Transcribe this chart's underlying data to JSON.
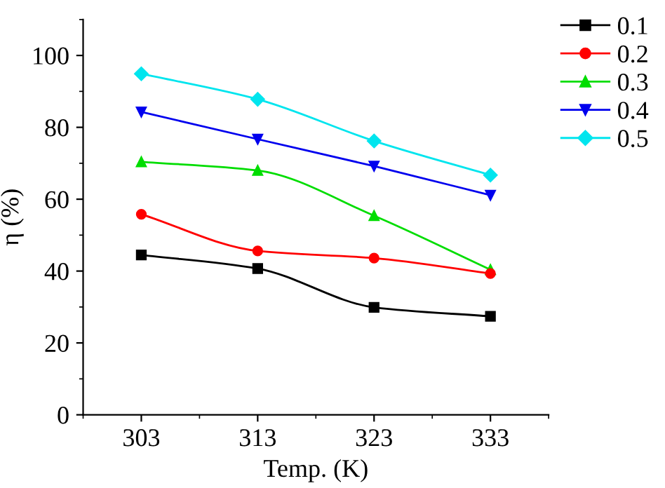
{
  "chart_data": {
    "type": "line",
    "xlabel": "Temp. (K)",
    "ylabel": "η (%)",
    "x": [
      303,
      313,
      323,
      333
    ],
    "xlim": [
      298,
      338
    ],
    "xticks": [
      303,
      313,
      323,
      333
    ],
    "ylim": [
      0,
      110
    ],
    "yticks": [
      0,
      20,
      40,
      60,
      80,
      100
    ],
    "legend": "top right",
    "grid": false,
    "series": [
      {
        "name": "0.1",
        "color": "#000000",
        "marker": "square",
        "values": [
          44.5,
          40.7,
          29.9,
          27.4
        ]
      },
      {
        "name": "0.2",
        "color": "#ff0000",
        "marker": "circle",
        "values": [
          55.8,
          45.6,
          43.6,
          39.3
        ]
      },
      {
        "name": "0.3",
        "color": "#00dd00",
        "marker": "triangle",
        "values": [
          70.4,
          68.0,
          55.4,
          40.4
        ]
      },
      {
        "name": "0.4",
        "color": "#0000ee",
        "marker": "triangle_down",
        "values": [
          84.3,
          76.7,
          69.2,
          61.1
        ]
      },
      {
        "name": "0.5",
        "color": "#00e5ee",
        "marker": "diamond",
        "values": [
          94.9,
          87.8,
          76.2,
          66.7
        ]
      }
    ]
  }
}
